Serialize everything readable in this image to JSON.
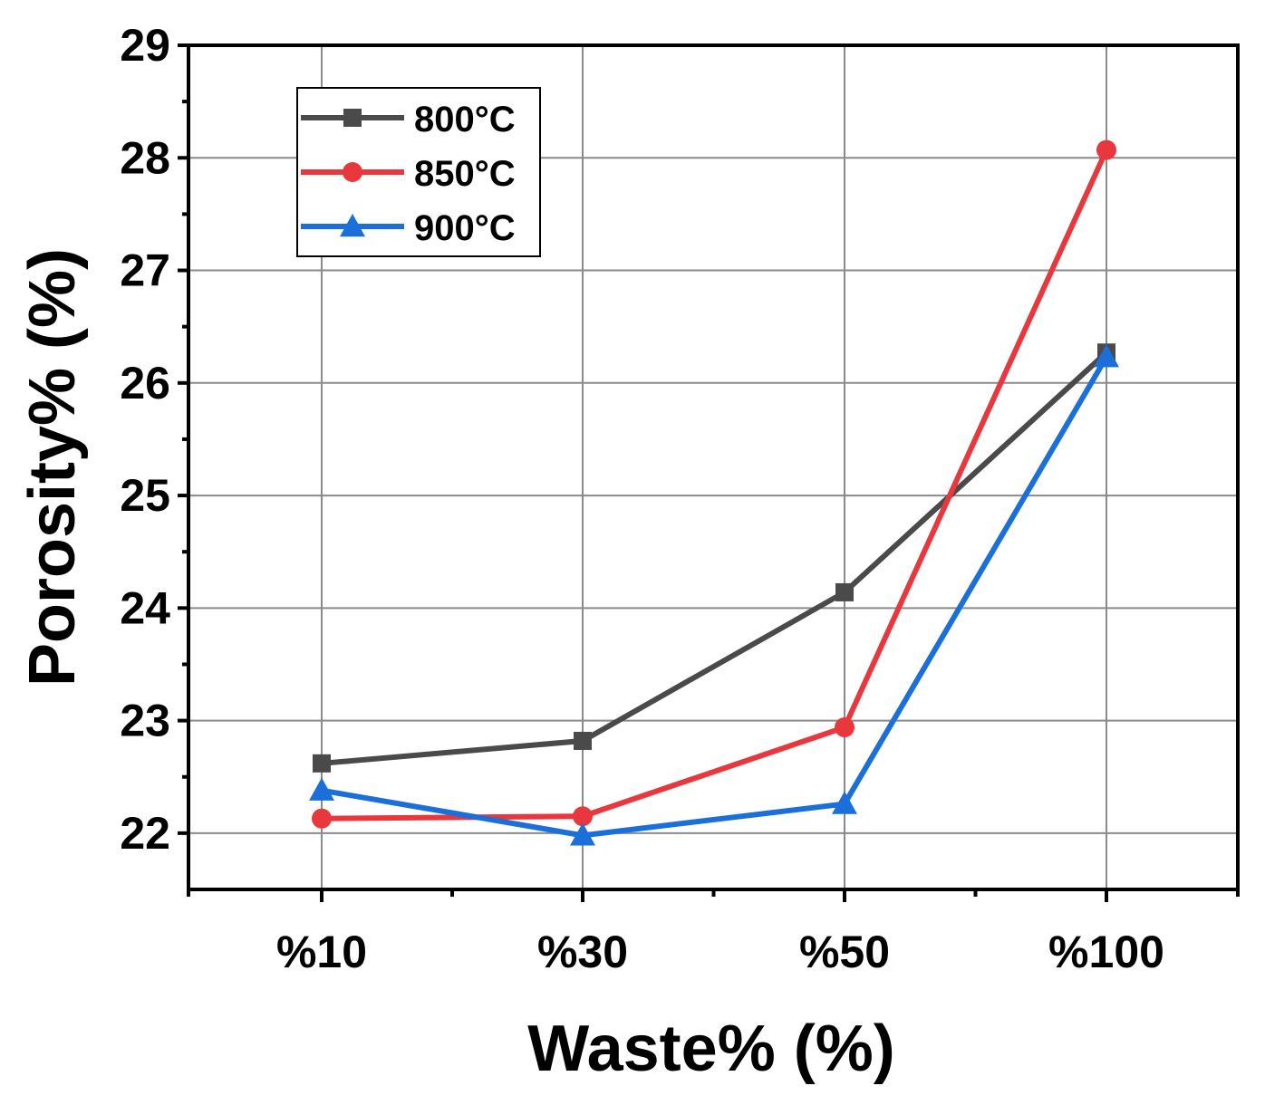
{
  "chart_data": {
    "type": "line",
    "title": "",
    "xlabel": "Waste% (%)",
    "ylabel": "Porosity% (%)",
    "categories": [
      "%10",
      "%30",
      "%50",
      "%100"
    ],
    "ylim": [
      21.5,
      29
    ],
    "yticks": [
      22,
      23,
      24,
      25,
      26,
      27,
      28,
      29
    ],
    "grid": true,
    "legend_position": "top-left",
    "series": [
      {
        "name": "800°C",
        "color": "#4a4a4a",
        "marker": "square",
        "values": [
          22.62,
          22.82,
          24.14,
          26.27
        ]
      },
      {
        "name": "850°C",
        "color": "#e8383d",
        "marker": "circle",
        "values": [
          22.13,
          22.15,
          22.94,
          28.07
        ]
      },
      {
        "name": "900°C",
        "color": "#1a6fdb",
        "marker": "triangle",
        "values": [
          22.38,
          21.98,
          22.26,
          26.23
        ]
      }
    ]
  }
}
